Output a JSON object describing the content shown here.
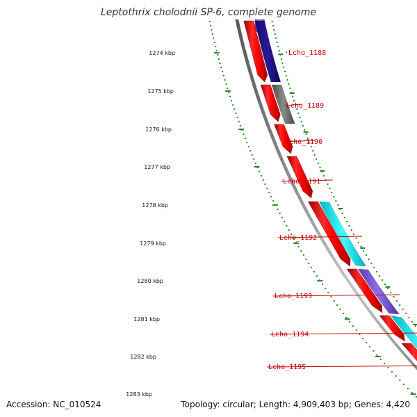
{
  "title": "Leptothrix cholodnii SP-6, complete genome",
  "footer": {
    "accession": "Accession: NC_010524",
    "topology": "Topology: circular; Length: 4,909,403 bp; Genes: 4,420"
  },
  "colors": {
    "backbone": "#7f7f7f",
    "forward_cds": "#ee0000",
    "scale_dots": "#2a8a2a",
    "label": "#cc0000"
  },
  "scale_ticks": [
    "1274 kbp",
    "1275 kbp",
    "1276 kbp",
    "1277 kbp",
    "1278 kbp",
    "1279 kbp",
    "1280 kbp",
    "1281 kbp",
    "1282 kbp",
    "1283 kbp"
  ],
  "gene_labels": [
    "Lcho_1188",
    "Lcho_1189",
    "Lcho_1190",
    "Lcho_1191",
    "Lcho_1192",
    "Lcho_1193",
    "Lcho_1194",
    "Lcho_1195"
  ],
  "feature_colors": [
    "#2a1a9a",
    "#6b6b6b",
    "#00e0e0",
    "#7b5ad6",
    "#00e8e8",
    "#7b5ad6"
  ]
}
